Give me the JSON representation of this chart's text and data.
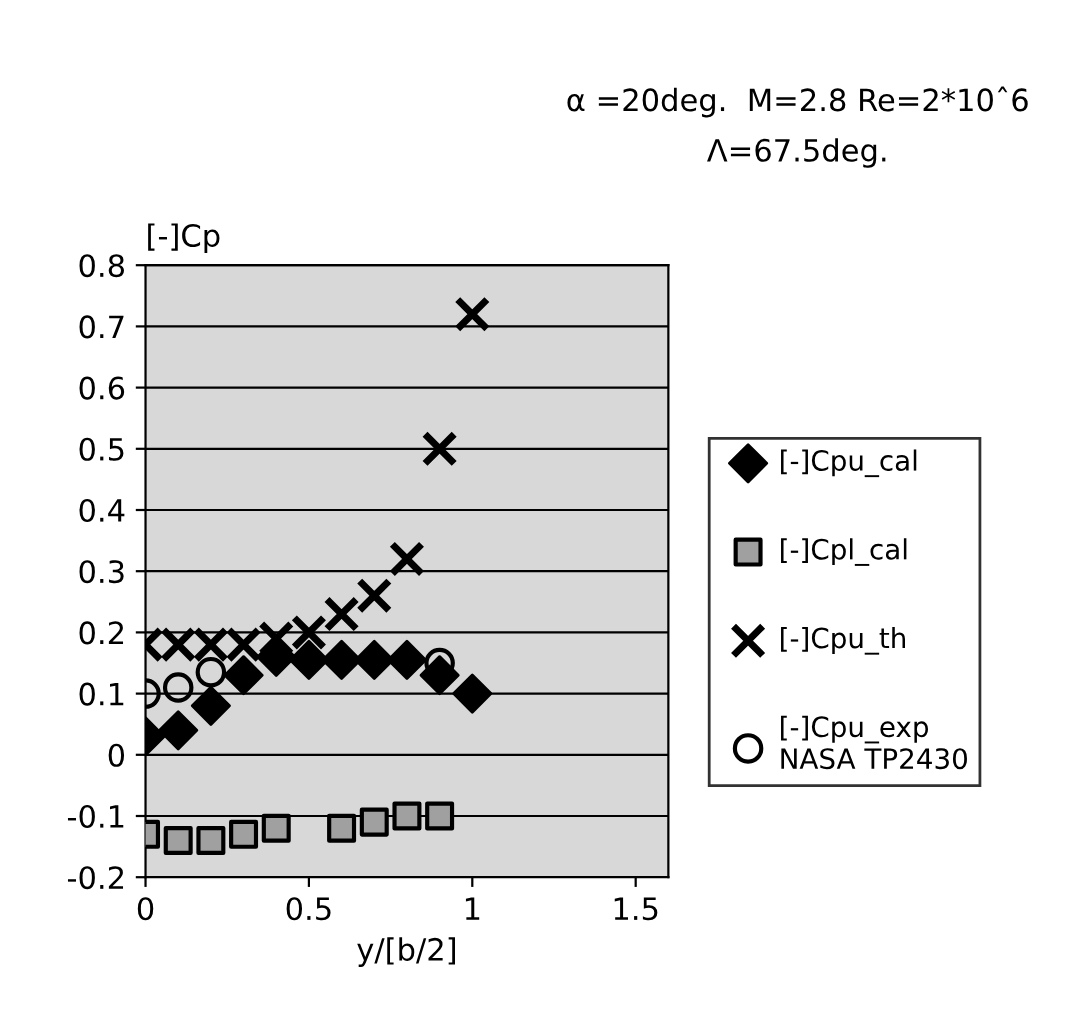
{
  "chart_data": {
    "type": "scatter",
    "annotations": [
      "α =20deg.  M=2.8 Re=2*10ˆ6",
      "Λ=67.5deg."
    ],
    "ylabel": "[-]Cp",
    "xlabel": "y/[b/2]",
    "xlim": [
      0,
      1.6
    ],
    "xticks": [
      0,
      0.5,
      1,
      1.5
    ],
    "ylim": [
      -0.2,
      0.8
    ],
    "yticks": [
      -0.2,
      -0.1,
      0,
      0.1,
      0.2,
      0.3,
      0.4,
      0.5,
      0.6,
      0.7,
      0.8
    ],
    "grid": "y",
    "legend": "right",
    "series": [
      {
        "name": "[-]Cpu_cal",
        "color": "#000000",
        "marker": "diamond",
        "x": [
          0,
          0.1,
          0.2,
          0.3,
          0.4,
          0.5,
          0.6,
          0.7,
          0.8,
          0.9,
          1.0
        ],
        "values": [
          0.03,
          0.04,
          0.08,
          0.13,
          0.16,
          0.155,
          0.155,
          0.155,
          0.155,
          0.13,
          0.1
        ]
      },
      {
        "name": "[-]Cpl_cal",
        "color": "#a0a0a0",
        "marker": "square",
        "x": [
          0,
          0.1,
          0.2,
          0.3,
          0.4,
          0.6,
          0.7,
          0.8,
          0.9
        ],
        "values": [
          -0.13,
          -0.14,
          -0.14,
          -0.13,
          -0.12,
          -0.12,
          -0.11,
          -0.1,
          -0.1
        ]
      },
      {
        "name": "[-]Cpu_th",
        "color": "#000000",
        "marker": "cross",
        "x": [
          0,
          0.1,
          0.2,
          0.3,
          0.4,
          0.5,
          0.6,
          0.7,
          0.8,
          0.9,
          1.0
        ],
        "values": [
          0.18,
          0.18,
          0.18,
          0.18,
          0.19,
          0.2,
          0.23,
          0.26,
          0.32,
          0.5,
          0.72
        ]
      },
      {
        "name": "[-]Cpu_exp\nNASA TP2430",
        "color": "#000000",
        "marker": "circle",
        "x": [
          0,
          0.1,
          0.2,
          0.9
        ],
        "values": [
          0.1,
          0.11,
          0.135,
          0.15
        ]
      }
    ]
  }
}
